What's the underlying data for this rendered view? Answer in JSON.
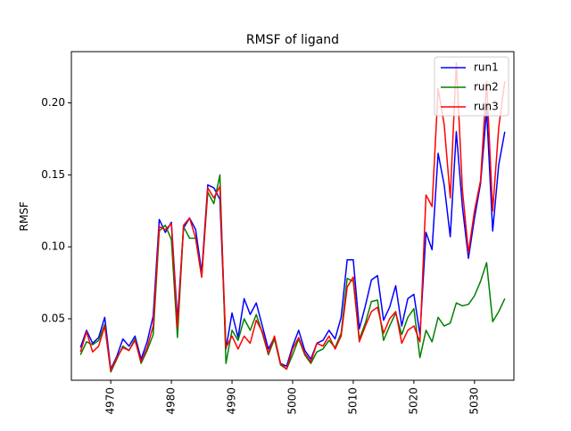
{
  "chart_data": {
    "type": "line",
    "title": "RMSF of ligand",
    "xlabel": "",
    "ylabel": "RMSF",
    "xlim": [
      4963.5,
      5036.5
    ],
    "ylim": [
      0.0073,
      0.2356
    ],
    "xticks": [
      4970,
      4980,
      4990,
      5000,
      5010,
      5020,
      5030
    ],
    "xtick_labels": [
      "4970",
      "4980",
      "4990",
      "5000",
      "5010",
      "5020",
      "5030"
    ],
    "yticks": [
      0.05,
      0.1,
      0.15,
      0.2
    ],
    "ytick_labels": [
      "0.05",
      "0.10",
      "0.15",
      "0.20"
    ],
    "legend_position": "top-right",
    "grid": false,
    "x": [
      4965,
      4966,
      4967,
      4968,
      4969,
      4970,
      4971,
      4972,
      4973,
      4974,
      4975,
      4976,
      4977,
      4978,
      4979,
      4980,
      4981,
      4982,
      4983,
      4984,
      4985,
      4986,
      4987,
      4988,
      4989,
      4990,
      4991,
      4992,
      4993,
      4994,
      4995,
      4996,
      4997,
      4998,
      4999,
      5000,
      5001,
      5002,
      5003,
      5004,
      5005,
      5006,
      5007,
      5008,
      5009,
      5010,
      5011,
      5012,
      5013,
      5014,
      5015,
      5016,
      5017,
      5018,
      5019,
      5020,
      5021,
      5022,
      5023,
      5024,
      5025,
      5026,
      5027,
      5028,
      5029,
      5030,
      5031,
      5032,
      5033,
      5034,
      5035
    ],
    "series": [
      {
        "name": "run1",
        "color": "#0000ff",
        "values": [
          0.03,
          0.042,
          0.033,
          0.037,
          0.051,
          0.015,
          0.024,
          0.036,
          0.031,
          0.038,
          0.022,
          0.034,
          0.052,
          0.119,
          0.11,
          0.117,
          0.049,
          0.113,
          0.12,
          0.112,
          0.082,
          0.143,
          0.141,
          0.133,
          0.029,
          0.054,
          0.037,
          0.064,
          0.053,
          0.061,
          0.045,
          0.029,
          0.037,
          0.019,
          0.017,
          0.031,
          0.042,
          0.028,
          0.022,
          0.033,
          0.035,
          0.042,
          0.036,
          0.051,
          0.091,
          0.091,
          0.043,
          0.059,
          0.077,
          0.08,
          0.049,
          0.058,
          0.073,
          0.045,
          0.064,
          0.067,
          0.039,
          0.11,
          0.098,
          0.165,
          0.143,
          0.107,
          0.18,
          0.128,
          0.092,
          0.12,
          0.144,
          0.195,
          0.111,
          0.157,
          0.18
        ]
      },
      {
        "name": "run2",
        "color": "#008000",
        "values": [
          0.025,
          0.034,
          0.032,
          0.035,
          0.046,
          0.013,
          0.022,
          0.031,
          0.028,
          0.036,
          0.019,
          0.028,
          0.039,
          0.111,
          0.115,
          0.105,
          0.037,
          0.114,
          0.106,
          0.106,
          0.079,
          0.138,
          0.13,
          0.15,
          0.019,
          0.042,
          0.035,
          0.05,
          0.042,
          0.053,
          0.04,
          0.025,
          0.036,
          0.018,
          0.015,
          0.025,
          0.036,
          0.025,
          0.019,
          0.027,
          0.029,
          0.035,
          0.03,
          0.04,
          0.078,
          0.076,
          0.036,
          0.047,
          0.062,
          0.063,
          0.035,
          0.045,
          0.054,
          0.039,
          0.051,
          0.057,
          0.023,
          0.042,
          0.034,
          0.051,
          0.045,
          0.047,
          0.061,
          0.059,
          0.06,
          0.066,
          0.076,
          0.089,
          0.048,
          0.055,
          0.064
        ]
      },
      {
        "name": "run3",
        "color": "#ff0000",
        "values": [
          0.027,
          0.041,
          0.027,
          0.031,
          0.045,
          0.014,
          0.023,
          0.03,
          0.028,
          0.035,
          0.02,
          0.03,
          0.045,
          0.114,
          0.112,
          0.116,
          0.044,
          0.115,
          0.12,
          0.106,
          0.079,
          0.141,
          0.134,
          0.142,
          0.03,
          0.038,
          0.029,
          0.038,
          0.033,
          0.049,
          0.041,
          0.026,
          0.038,
          0.019,
          0.015,
          0.029,
          0.037,
          0.026,
          0.02,
          0.033,
          0.031,
          0.038,
          0.029,
          0.038,
          0.072,
          0.079,
          0.034,
          0.045,
          0.055,
          0.058,
          0.04,
          0.05,
          0.055,
          0.033,
          0.042,
          0.045,
          0.034,
          0.136,
          0.128,
          0.21,
          0.185,
          0.134,
          0.228,
          0.14,
          0.096,
          0.125,
          0.146,
          0.215,
          0.125,
          0.183,
          0.215
        ]
      }
    ]
  }
}
